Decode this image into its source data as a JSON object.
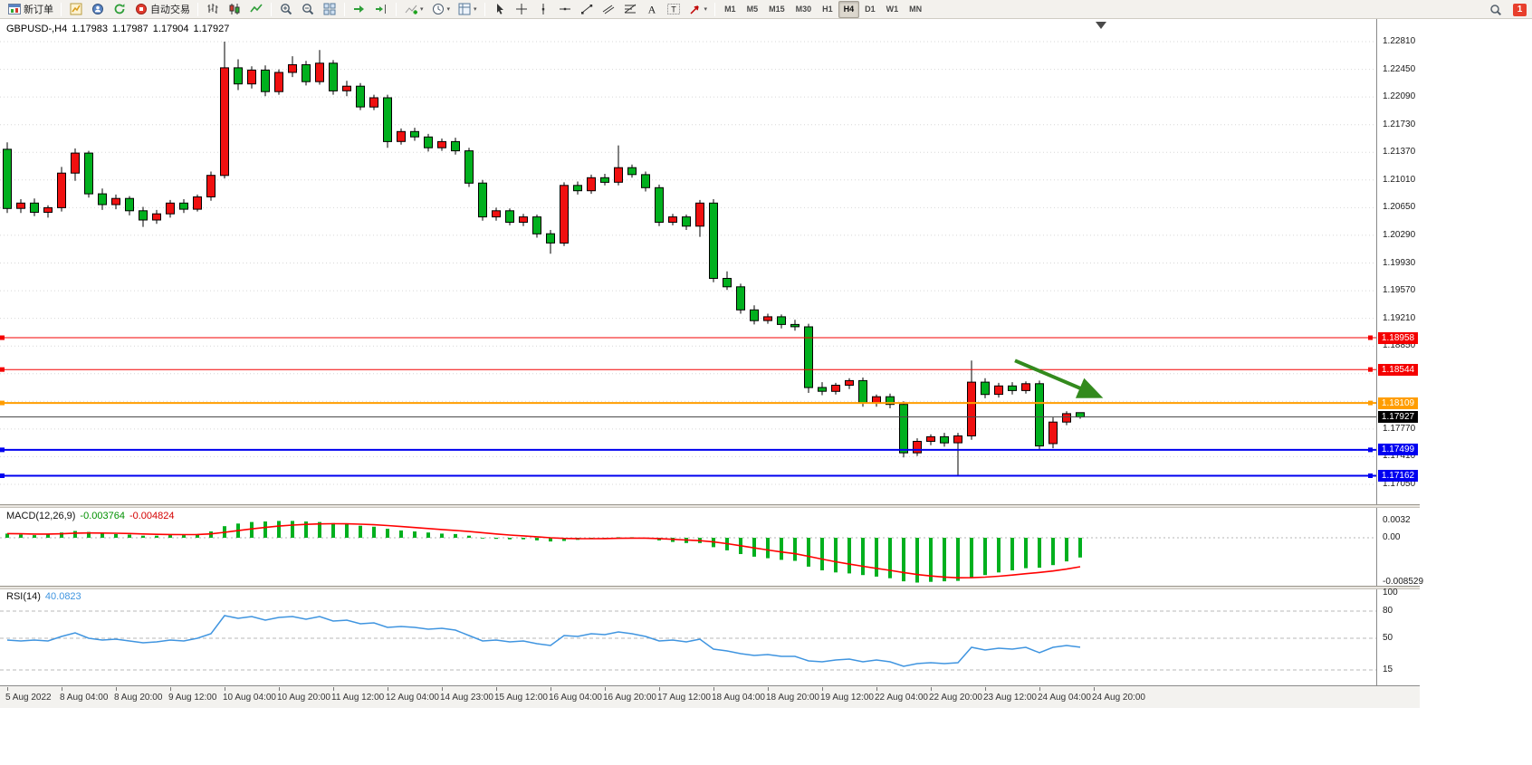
{
  "toolbar": {
    "badge": "1",
    "groups": [
      {
        "name": "order-group",
        "items": [
          {
            "name": "new-order",
            "icon": "new-order",
            "label": "新订单"
          }
        ]
      },
      {
        "name": "windows-group",
        "items": [
          {
            "name": "new-chart",
            "icon": "new-chart"
          },
          {
            "name": "profiles",
            "icon": "profiles"
          },
          {
            "name": "refresh",
            "icon": "refresh"
          },
          {
            "name": "autotrading",
            "icon": "autotrading",
            "label": "自动交易"
          }
        ]
      },
      {
        "name": "chart-type-group",
        "items": [
          {
            "name": "bar-chart-mode",
            "icon": "bars"
          },
          {
            "name": "candlestick-mode",
            "icon": "candles"
          },
          {
            "name": "line-chart-mode",
            "icon": "line"
          }
        ]
      },
      {
        "name": "zoom-group",
        "items": [
          {
            "name": "zoom-in",
            "icon": "zoom-in"
          },
          {
            "name": "zoom-out",
            "icon": "zoom-out"
          },
          {
            "name": "tile-windows",
            "icon": "tile"
          }
        ]
      },
      {
        "name": "scroll-group",
        "items": [
          {
            "name": "auto-scroll",
            "icon": "autoscroll"
          },
          {
            "name": "chart-shift",
            "icon": "shift"
          }
        ]
      },
      {
        "name": "insert-group",
        "items": [
          {
            "name": "indicators",
            "icon": "indicators",
            "dropdown": true
          },
          {
            "name": "periods",
            "icon": "clock",
            "dropdown": true
          },
          {
            "name": "templates",
            "icon": "template",
            "dropdown": true
          }
        ]
      },
      {
        "name": "objects-group",
        "items": [
          {
            "name": "cursor",
            "icon": "cursor"
          },
          {
            "name": "crosshair",
            "icon": "crosshair"
          },
          {
            "name": "vertical-line",
            "icon": "vline"
          },
          {
            "name": "horizontal-line",
            "icon": "hline"
          },
          {
            "name": "trendline",
            "icon": "trend"
          },
          {
            "name": "equidistant-channel",
            "icon": "channel"
          },
          {
            "name": "fibonacci",
            "icon": "fibo"
          },
          {
            "name": "text",
            "icon": "text"
          },
          {
            "name": "text-label",
            "icon": "label"
          },
          {
            "name": "arrows",
            "icon": "arrow",
            "dropdown": true
          }
        ]
      },
      {
        "name": "timeframes-group",
        "items": [
          {
            "name": "tf-m1",
            "label": "M1",
            "tf": true
          },
          {
            "name": "tf-m5",
            "label": "M5",
            "tf": true
          },
          {
            "name": "tf-m15",
            "label": "M15",
            "tf": true
          },
          {
            "name": "tf-m30",
            "label": "M30",
            "tf": true
          },
          {
            "name": "tf-h1",
            "label": "H1",
            "tf": true
          },
          {
            "name": "tf-h4",
            "label": "H4",
            "tf": true,
            "active": true
          },
          {
            "name": "tf-d1",
            "label": "D1",
            "tf": true
          },
          {
            "name": "tf-w1",
            "label": "W1",
            "tf": true
          },
          {
            "name": "tf-mn",
            "label": "MN",
            "tf": true
          }
        ]
      }
    ]
  },
  "header": {
    "symbol_period": "GBPUSD-,H4",
    "open": "1.17983",
    "high": "1.17987",
    "low": "1.17904",
    "close": "1.17927"
  },
  "colors": {
    "bull": "#f01010",
    "bear": "#00b01e",
    "candle_outline": "#000000",
    "grid": "#d7d7d7",
    "macd_histogram": "#00b01e",
    "macd_signal": "#ff0000",
    "rsi_line": "#4095e0",
    "rsi_level": "#b8b8b8",
    "arrow": "#338a1d",
    "bid_line": "#4a4a4a",
    "bid_tag": "#000000",
    "hline_red": "#f40000",
    "hline_orange": "#ff9d00",
    "hline_blue": "#0000f0"
  },
  "chart_data": {
    "type": "candlestick",
    "symbol": "GBPUSD-",
    "period": "H4",
    "price_axis": {
      "max": 1.2281,
      "min": 1.1705,
      "step": 0.0036,
      "labels": [
        "1.22810",
        "1.22450",
        "1.22090",
        "1.21730",
        "1.21370",
        "1.21010",
        "1.20650",
        "1.20290",
        "1.19930",
        "1.19570",
        "1.19210",
        "1.18850",
        "1.17770",
        "1.17410",
        "1.17050"
      ]
    },
    "candles": [
      [
        1.2141,
        1.215,
        1.2058,
        1.2064
      ],
      [
        1.2064,
        1.2076,
        1.2058,
        1.2071
      ],
      [
        1.2071,
        1.2077,
        1.2054,
        1.2059
      ],
      [
        1.2059,
        1.2068,
        1.2052,
        1.2065
      ],
      [
        1.2065,
        1.2118,
        1.206,
        1.211
      ],
      [
        1.211,
        1.2142,
        1.21,
        1.2136
      ],
      [
        1.2136,
        1.2139,
        1.2078,
        1.2083
      ],
      [
        1.2083,
        1.209,
        1.2062,
        1.2069
      ],
      [
        1.2069,
        1.2082,
        1.2063,
        1.2077
      ],
      [
        1.2077,
        1.208,
        1.2055,
        1.2061
      ],
      [
        1.2061,
        1.2066,
        1.204,
        1.2049
      ],
      [
        1.2049,
        1.2062,
        1.2044,
        1.2057
      ],
      [
        1.2057,
        1.2075,
        1.2052,
        1.2071
      ],
      [
        1.2071,
        1.2076,
        1.2058,
        1.2063
      ],
      [
        1.2063,
        1.2082,
        1.206,
        1.2079
      ],
      [
        1.2079,
        1.2112,
        1.2074,
        1.2107
      ],
      [
        1.2107,
        1.2281,
        1.2103,
        1.2247
      ],
      [
        1.2247,
        1.2258,
        1.2218,
        1.2226
      ],
      [
        1.2226,
        1.2249,
        1.222,
        1.2244
      ],
      [
        1.2244,
        1.225,
        1.221,
        1.2216
      ],
      [
        1.2216,
        1.2245,
        1.2212,
        1.2241
      ],
      [
        1.2241,
        1.2262,
        1.2235,
        1.2251
      ],
      [
        1.2251,
        1.2256,
        1.2224,
        1.2229
      ],
      [
        1.2229,
        1.227,
        1.2225,
        1.2253
      ],
      [
        1.2253,
        1.2257,
        1.2212,
        1.2217
      ],
      [
        1.2217,
        1.223,
        1.221,
        1.2223
      ],
      [
        1.2223,
        1.2227,
        1.2192,
        1.2196
      ],
      [
        1.2196,
        1.2212,
        1.2192,
        1.2208
      ],
      [
        1.2208,
        1.2212,
        1.2143,
        1.2151
      ],
      [
        1.2151,
        1.2168,
        1.2147,
        1.2164
      ],
      [
        1.2164,
        1.2169,
        1.2152,
        1.2157
      ],
      [
        1.2157,
        1.2161,
        1.2138,
        1.2143
      ],
      [
        1.2143,
        1.2155,
        1.2139,
        1.2151
      ],
      [
        1.2151,
        1.2156,
        1.2134,
        1.2139
      ],
      [
        1.2139,
        1.2143,
        1.2092,
        1.2097
      ],
      [
        1.2097,
        1.2101,
        1.2048,
        1.2053
      ],
      [
        1.2053,
        1.2065,
        1.2048,
        1.2061
      ],
      [
        1.2061,
        1.2064,
        1.2042,
        1.2046
      ],
      [
        1.2046,
        1.2057,
        1.2041,
        1.2053
      ],
      [
        1.2053,
        1.2056,
        1.2026,
        1.2031
      ],
      [
        1.2031,
        1.2036,
        1.2005,
        1.2019
      ],
      [
        1.2019,
        1.2098,
        1.2015,
        1.2094
      ],
      [
        1.2094,
        1.2099,
        1.2082,
        1.2087
      ],
      [
        1.2087,
        1.2108,
        1.2083,
        1.2104
      ],
      [
        1.2104,
        1.2109,
        1.2094,
        1.2098
      ],
      [
        1.2098,
        1.2146,
        1.2094,
        1.2117
      ],
      [
        1.2117,
        1.2121,
        1.2104,
        1.2108
      ],
      [
        1.2108,
        1.2112,
        1.2086,
        1.2091
      ],
      [
        1.2091,
        1.2095,
        1.2041,
        1.2046
      ],
      [
        1.2046,
        1.2057,
        1.2042,
        1.2053
      ],
      [
        1.2053,
        1.2056,
        1.2036,
        1.2041
      ],
      [
        1.2041,
        1.2075,
        1.2027,
        1.2071
      ],
      [
        1.2071,
        1.2076,
        1.1968,
        1.1973
      ],
      [
        1.1973,
        1.1982,
        1.1958,
        1.1962
      ],
      [
        1.1962,
        1.1966,
        1.1927,
        1.1932
      ],
      [
        1.1932,
        1.1938,
        1.1913,
        1.1918
      ],
      [
        1.1918,
        1.1927,
        1.1914,
        1.1923
      ],
      [
        1.1923,
        1.1926,
        1.1908,
        1.1913
      ],
      [
        1.1913,
        1.1919,
        1.1905,
        1.191
      ],
      [
        1.191,
        1.1914,
        1.1824,
        1.1831
      ],
      [
        1.1831,
        1.1838,
        1.1821,
        1.1826
      ],
      [
        1.1826,
        1.1837,
        1.1822,
        1.1834
      ],
      [
        1.1834,
        1.1843,
        1.1829,
        1.184
      ],
      [
        1.184,
        1.1844,
        1.1806,
        1.1811
      ],
      [
        1.1811,
        1.1822,
        1.1806,
        1.1819
      ],
      [
        1.1819,
        1.1823,
        1.1804,
        1.1809
      ],
      [
        1.1809,
        1.1813,
        1.174,
        1.1746
      ],
      [
        1.1746,
        1.1765,
        1.1742,
        1.1761
      ],
      [
        1.1761,
        1.177,
        1.1756,
        1.1767
      ],
      [
        1.1767,
        1.1772,
        1.1754,
        1.1759
      ],
      [
        1.1759,
        1.1772,
        1.1716,
        1.1768
      ],
      [
        1.1768,
        1.1866,
        1.1763,
        1.1838
      ],
      [
        1.1838,
        1.1843,
        1.1817,
        1.1822
      ],
      [
        1.1822,
        1.1837,
        1.1818,
        1.1833
      ],
      [
        1.1833,
        1.1838,
        1.1822,
        1.1827
      ],
      [
        1.1827,
        1.1839,
        1.1823,
        1.1836
      ],
      [
        1.1836,
        1.184,
        1.175,
        1.1755
      ],
      [
        1.1758,
        1.1792,
        1.1752,
        1.1786
      ],
      [
        1.1786,
        1.18,
        1.1782,
        1.1797
      ],
      [
        1.17983,
        1.17987,
        1.17904,
        1.17927
      ]
    ],
    "line_objects": [
      {
        "label": "1.18958",
        "price": 1.18958,
        "color": "#f40000",
        "width": 1
      },
      {
        "label": "1.18544",
        "price": 1.18544,
        "color": "#f40000",
        "width": 1
      },
      {
        "label": "1.18109",
        "price": 1.18109,
        "color": "#ff9d00",
        "width": 2
      },
      {
        "label": "1.17499",
        "price": 1.17499,
        "color": "#0000f0",
        "width": 2
      },
      {
        "label": "1.17162",
        "price": 1.17162,
        "color": "#0000f0",
        "width": 2
      }
    ],
    "bid_line": {
      "label": "1.17927",
      "price": 1.17927
    },
    "arrow_object": {
      "from": {
        "bar": 74.2,
        "price": 1.1866
      },
      "to": {
        "bar": 80.2,
        "price": 1.1821
      }
    },
    "macd": {
      "name": "MACD(12,26,9)",
      "value_main": "-0.003764",
      "value_signal": "-0.004824",
      "axis_labels": [
        "0.0032",
        "0.00",
        "-0.008529"
      ],
      "values": [
        0.0008,
        0.0006,
        0.0005,
        0.0007,
        0.001,
        0.0013,
        0.0011,
        0.0008,
        0.0007,
        0.0006,
        0.0004,
        0.0004,
        0.0005,
        0.0005,
        0.0007,
        0.0012,
        0.0022,
        0.0027,
        0.003,
        0.0031,
        0.0032,
        0.0032,
        0.0031,
        0.003,
        0.0028,
        0.0026,
        0.0023,
        0.0021,
        0.0017,
        0.0014,
        0.0012,
        0.001,
        0.0008,
        0.0007,
        0.0004,
        0.0,
        -0.0002,
        -0.0003,
        -0.0003,
        -0.0005,
        -0.0007,
        -0.0006,
        -0.0004,
        -0.0002,
        -0.0001,
        0.0001,
        0.0001,
        -0.0001,
        -0.0005,
        -0.0008,
        -0.001,
        -0.001,
        -0.0018,
        -0.0024,
        -0.0031,
        -0.0036,
        -0.0039,
        -0.0042,
        -0.0044,
        -0.0055,
        -0.0062,
        -0.0066,
        -0.0068,
        -0.0071,
        -0.0074,
        -0.0077,
        -0.0083,
        -0.008529,
        -0.0084,
        -0.0083,
        -0.0082,
        -0.0075,
        -0.0071,
        -0.0066,
        -0.0062,
        -0.0058,
        -0.0057,
        -0.0052,
        -0.0045,
        -0.003764
      ]
    },
    "rsi": {
      "name": "RSI(14)",
      "value": "40.0823",
      "axis_labels": [
        "100",
        "80",
        "50",
        "15"
      ],
      "levels": [
        80,
        50,
        15
      ],
      "values": [
        48,
        47,
        48,
        47,
        52,
        56,
        50,
        48,
        49,
        47,
        45,
        46,
        48,
        47,
        50,
        55,
        75,
        72,
        74,
        70,
        73,
        74,
        71,
        74,
        69,
        70,
        66,
        67,
        62,
        63,
        62,
        60,
        61,
        59,
        53,
        47,
        48,
        46,
        47,
        44,
        42,
        53,
        52,
        55,
        54,
        57,
        55,
        52,
        47,
        48,
        46,
        49,
        38,
        36,
        33,
        31,
        32,
        30,
        30,
        25,
        24,
        26,
        27,
        24,
        26,
        24,
        19,
        22,
        23,
        22,
        23,
        40,
        37,
        39,
        38,
        40,
        34,
        40,
        42,
        40.0823
      ]
    },
    "time_axis": {
      "labels": [
        {
          "text": "5 Aug 2022",
          "bar": 0
        },
        {
          "text": "8 Aug 04:00",
          "bar": 4
        },
        {
          "text": "8 Aug 20:00",
          "bar": 8
        },
        {
          "text": "9 Aug 12:00",
          "bar": 12
        },
        {
          "text": "10 Aug 04:00",
          "bar": 16
        },
        {
          "text": "10 Aug 20:00",
          "bar": 20
        },
        {
          "text": "11 Aug 12:00",
          "bar": 24
        },
        {
          "text": "12 Aug 04:00",
          "bar": 28
        },
        {
          "text": "14 Aug 23:00",
          "bar": 32
        },
        {
          "text": "15 Aug 12:00",
          "bar": 36
        },
        {
          "text": "16 Aug 04:00",
          "bar": 40
        },
        {
          "text": "16 Aug 20:00",
          "bar": 44
        },
        {
          "text": "17 Aug 12:00",
          "bar": 48
        },
        {
          "text": "18 Aug 04:00",
          "bar": 52
        },
        {
          "text": "18 Aug 20:00",
          "bar": 56
        },
        {
          "text": "19 Aug 12:00",
          "bar": 60
        },
        {
          "text": "22 Aug 04:00",
          "bar": 64
        },
        {
          "text": "22 Aug 20:00",
          "bar": 68
        },
        {
          "text": "23 Aug 12:00",
          "bar": 72
        },
        {
          "text": "24 Aug 04:00",
          "bar": 76
        },
        {
          "text": "24 Aug 20:00",
          "bar": 80
        }
      ]
    }
  }
}
